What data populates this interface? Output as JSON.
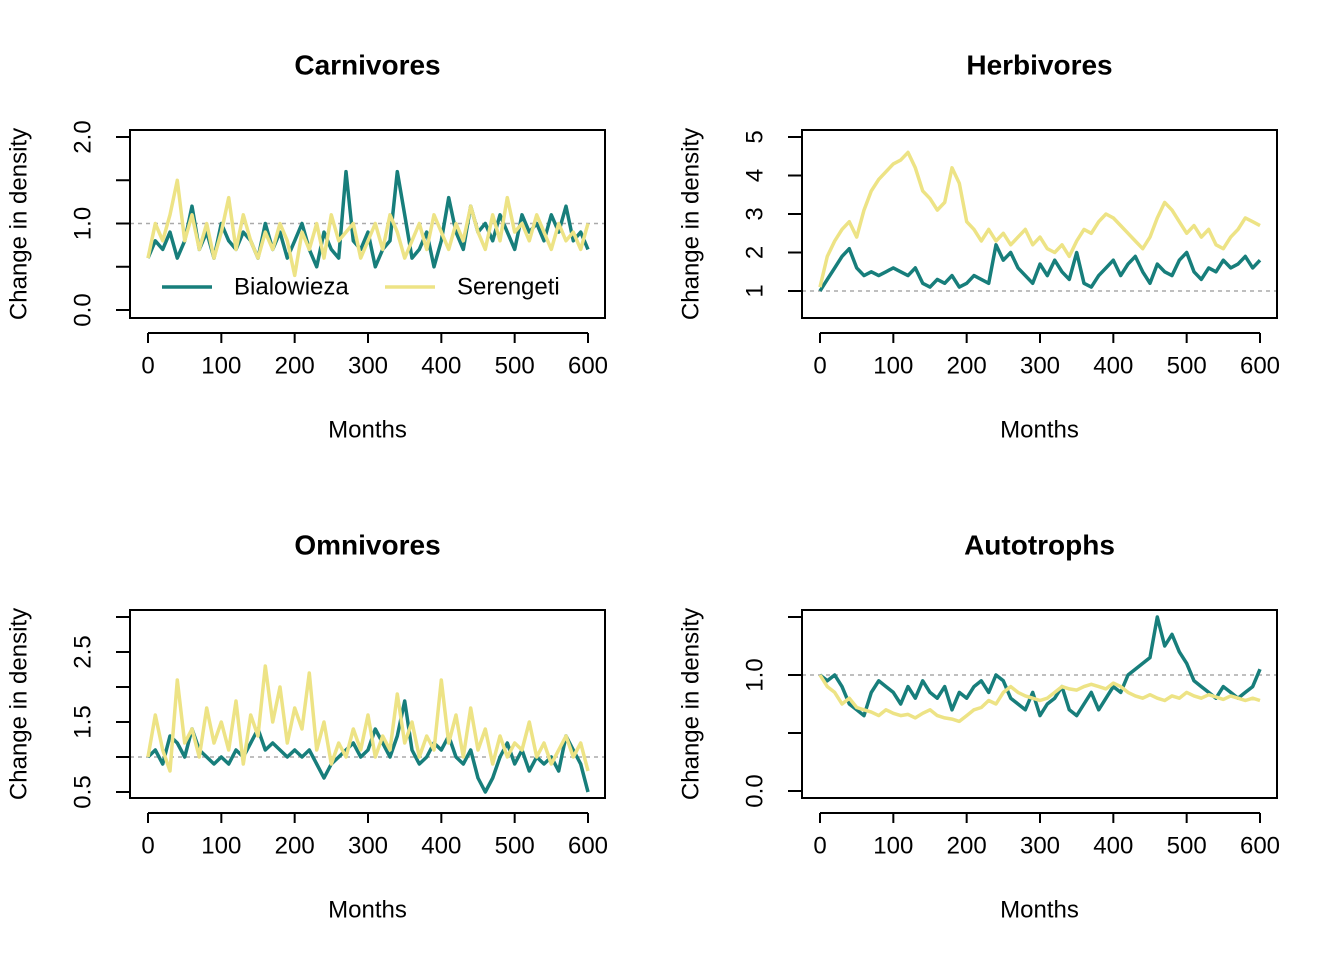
{
  "colors": {
    "bialowieza": "#177e7b",
    "serengeti": "#ede385",
    "refline": "#aaaaaa"
  },
  "legend": {
    "items": [
      "Bialowieza",
      "Serengeti"
    ],
    "placement": "bottom-center"
  },
  "chart_data": [
    {
      "type": "line",
      "title": "Carnivores",
      "xlabel": "Months",
      "ylabel": "Change in density",
      "xlim": [
        0,
        600
      ],
      "ylim": [
        0,
        2.0
      ],
      "xticks": [
        0,
        100,
        200,
        300,
        400,
        500,
        600
      ],
      "xticklabels": [
        "0",
        "100",
        "200",
        "300",
        "400",
        "500",
        "600"
      ],
      "yticks": [
        0,
        0.5,
        1.0,
        1.5,
        2.0
      ],
      "yticklabels": [
        "0.0",
        "",
        "1.0",
        "",
        "2.0"
      ],
      "refline": 1.0,
      "x": [
        0,
        10,
        20,
        30,
        40,
        50,
        60,
        70,
        80,
        90,
        100,
        110,
        120,
        130,
        140,
        150,
        160,
        170,
        180,
        190,
        200,
        210,
        220,
        230,
        240,
        250,
        260,
        270,
        280,
        290,
        300,
        310,
        320,
        330,
        340,
        350,
        360,
        370,
        380,
        390,
        400,
        410,
        420,
        430,
        440,
        450,
        460,
        470,
        480,
        490,
        500,
        510,
        520,
        530,
        540,
        550,
        560,
        570,
        580,
        590,
        600
      ],
      "series": [
        {
          "name": "Bialowieza",
          "values": [
            0.6,
            0.8,
            0.7,
            0.9,
            0.6,
            0.8,
            1.2,
            0.7,
            0.9,
            0.6,
            1.0,
            0.8,
            0.7,
            0.9,
            0.8,
            0.6,
            1.0,
            0.7,
            0.9,
            0.6,
            0.8,
            1.0,
            0.7,
            0.5,
            0.9,
            0.7,
            0.6,
            1.6,
            0.8,
            0.7,
            0.9,
            0.5,
            0.7,
            0.8,
            1.6,
            1.1,
            0.6,
            0.7,
            0.9,
            0.5,
            0.8,
            1.3,
            0.9,
            0.7,
            1.2,
            0.9,
            1.0,
            0.8,
            1.1,
            0.9,
            0.7,
            1.1,
            0.9,
            1.0,
            0.8,
            1.1,
            0.9,
            1.2,
            0.8,
            0.9,
            0.7
          ]
        },
        {
          "name": "Serengeti",
          "values": [
            0.6,
            1.0,
            0.8,
            1.1,
            1.5,
            0.8,
            1.1,
            0.7,
            1.0,
            0.6,
            0.9,
            1.3,
            0.7,
            1.1,
            0.8,
            0.6,
            0.9,
            0.7,
            1.0,
            0.8,
            0.4,
            0.9,
            0.7,
            1.0,
            0.6,
            1.1,
            0.8,
            0.9,
            1.0,
            0.6,
            0.8,
            1.0,
            0.7,
            1.1,
            0.9,
            0.6,
            0.8,
            1.0,
            0.7,
            1.1,
            0.9,
            0.7,
            1.0,
            0.8,
            1.2,
            0.9,
            0.7,
            1.1,
            0.8,
            1.3,
            0.9,
            1.0,
            0.8,
            1.1,
            0.9,
            0.7,
            1.0,
            0.8,
            0.9,
            0.7,
            1.0
          ]
        }
      ]
    },
    {
      "type": "line",
      "title": "Herbivores",
      "xlabel": "Months",
      "ylabel": "Change in density",
      "xlim": [
        0,
        600
      ],
      "ylim": [
        1,
        5
      ],
      "xticks": [
        0,
        100,
        200,
        300,
        400,
        500,
        600
      ],
      "xticklabels": [
        "0",
        "100",
        "200",
        "300",
        "400",
        "500",
        "600"
      ],
      "yticks": [
        1,
        2,
        3,
        4,
        5
      ],
      "yticklabels": [
        "1",
        "2",
        "3",
        "4",
        "5"
      ],
      "refline": 1.0,
      "x": [
        0,
        10,
        20,
        30,
        40,
        50,
        60,
        70,
        80,
        90,
        100,
        110,
        120,
        130,
        140,
        150,
        160,
        170,
        180,
        190,
        200,
        210,
        220,
        230,
        240,
        250,
        260,
        270,
        280,
        290,
        300,
        310,
        320,
        330,
        340,
        350,
        360,
        370,
        380,
        390,
        400,
        410,
        420,
        430,
        440,
        450,
        460,
        470,
        480,
        490,
        500,
        510,
        520,
        530,
        540,
        550,
        560,
        570,
        580,
        590,
        600
      ],
      "series": [
        {
          "name": "Bialowieza",
          "values": [
            1.0,
            1.3,
            1.6,
            1.9,
            2.1,
            1.6,
            1.4,
            1.5,
            1.4,
            1.5,
            1.6,
            1.5,
            1.4,
            1.6,
            1.2,
            1.1,
            1.3,
            1.2,
            1.4,
            1.1,
            1.2,
            1.4,
            1.3,
            1.2,
            2.2,
            1.8,
            2.0,
            1.6,
            1.4,
            1.2,
            1.7,
            1.4,
            1.8,
            1.5,
            1.3,
            2.0,
            1.2,
            1.1,
            1.4,
            1.6,
            1.8,
            1.4,
            1.7,
            1.9,
            1.5,
            1.2,
            1.7,
            1.5,
            1.4,
            1.8,
            2.0,
            1.5,
            1.3,
            1.6,
            1.5,
            1.8,
            1.6,
            1.7,
            1.9,
            1.6,
            1.8
          ]
        },
        {
          "name": "Serengeti",
          "values": [
            1.1,
            1.9,
            2.3,
            2.6,
            2.8,
            2.4,
            3.1,
            3.6,
            3.9,
            4.1,
            4.3,
            4.4,
            4.6,
            4.2,
            3.6,
            3.4,
            3.1,
            3.3,
            4.2,
            3.8,
            2.8,
            2.6,
            2.3,
            2.6,
            2.3,
            2.5,
            2.2,
            2.4,
            2.6,
            2.2,
            2.4,
            2.1,
            2.0,
            2.2,
            1.9,
            2.3,
            2.6,
            2.5,
            2.8,
            3.0,
            2.9,
            2.7,
            2.5,
            2.3,
            2.1,
            2.4,
            2.9,
            3.3,
            3.1,
            2.8,
            2.5,
            2.7,
            2.4,
            2.6,
            2.2,
            2.1,
            2.4,
            2.6,
            2.9,
            2.8,
            2.7
          ]
        }
      ]
    },
    {
      "type": "line",
      "title": "Omnivores",
      "xlabel": "Months",
      "ylabel": "Change in density",
      "xlim": [
        0,
        600
      ],
      "ylim": [
        0.5,
        3.0
      ],
      "xticks": [
        0,
        100,
        200,
        300,
        400,
        500,
        600
      ],
      "xticklabels": [
        "0",
        "100",
        "200",
        "300",
        "400",
        "500",
        "600"
      ],
      "yticks": [
        0.5,
        1.0,
        1.5,
        2.0,
        2.5,
        3.0
      ],
      "yticklabels": [
        "0.5",
        "",
        "1.5",
        "",
        "2.5",
        ""
      ],
      "refline": 1.0,
      "x": [
        0,
        10,
        20,
        30,
        40,
        50,
        60,
        70,
        80,
        90,
        100,
        110,
        120,
        130,
        140,
        150,
        160,
        170,
        180,
        190,
        200,
        210,
        220,
        230,
        240,
        250,
        260,
        270,
        280,
        290,
        300,
        310,
        320,
        330,
        340,
        350,
        360,
        370,
        380,
        390,
        400,
        410,
        420,
        430,
        440,
        450,
        460,
        470,
        480,
        490,
        500,
        510,
        520,
        530,
        540,
        550,
        560,
        570,
        580,
        590,
        600
      ],
      "series": [
        {
          "name": "Bialowieza",
          "values": [
            1.0,
            1.1,
            0.9,
            1.3,
            1.2,
            1.0,
            1.4,
            1.1,
            1.0,
            0.9,
            1.0,
            0.9,
            1.1,
            1.0,
            1.2,
            1.4,
            1.1,
            1.2,
            1.1,
            1.0,
            1.1,
            1.0,
            1.1,
            0.9,
            0.7,
            0.9,
            1.0,
            1.1,
            1.2,
            1.0,
            1.1,
            1.4,
            1.2,
            1.0,
            1.3,
            1.8,
            1.1,
            0.9,
            1.0,
            1.2,
            1.1,
            1.3,
            1.0,
            0.9,
            1.1,
            0.7,
            0.5,
            0.7,
            1.0,
            1.2,
            0.9,
            1.1,
            0.8,
            1.0,
            0.9,
            1.0,
            0.8,
            1.3,
            1.1,
            0.9,
            0.5
          ]
        },
        {
          "name": "Serengeti",
          "values": [
            1.0,
            1.6,
            1.1,
            0.8,
            2.1,
            1.2,
            1.4,
            1.0,
            1.7,
            1.2,
            1.5,
            1.1,
            1.8,
            0.9,
            1.6,
            1.3,
            2.3,
            1.5,
            2.0,
            1.2,
            1.7,
            1.4,
            2.2,
            1.1,
            1.5,
            0.9,
            1.2,
            1.0,
            1.4,
            1.1,
            1.6,
            1.0,
            1.3,
            1.1,
            1.9,
            1.2,
            1.5,
            1.0,
            1.3,
            1.1,
            2.1,
            1.2,
            1.6,
            1.0,
            1.7,
            1.1,
            1.4,
            0.9,
            1.3,
            1.0,
            1.2,
            1.1,
            1.5,
            1.0,
            1.2,
            0.9,
            1.1,
            1.3,
            1.0,
            1.2,
            0.8
          ]
        }
      ]
    },
    {
      "type": "line",
      "title": "Autotrophs",
      "xlabel": "Months",
      "ylabel": "Change in density",
      "xlim": [
        0,
        600
      ],
      "ylim": [
        0,
        1.5
      ],
      "xticks": [
        0,
        100,
        200,
        300,
        400,
        500,
        600
      ],
      "xticklabels": [
        "0",
        "100",
        "200",
        "300",
        "400",
        "500",
        "600"
      ],
      "yticks": [
        0,
        0.5,
        1.0,
        1.5
      ],
      "yticklabels": [
        "0.0",
        "",
        "1.0",
        ""
      ],
      "refline": 1.0,
      "x": [
        0,
        10,
        20,
        30,
        40,
        50,
        60,
        70,
        80,
        90,
        100,
        110,
        120,
        130,
        140,
        150,
        160,
        170,
        180,
        190,
        200,
        210,
        220,
        230,
        240,
        250,
        260,
        270,
        280,
        290,
        300,
        310,
        320,
        330,
        340,
        350,
        360,
        370,
        380,
        390,
        400,
        410,
        420,
        430,
        440,
        450,
        460,
        470,
        480,
        490,
        500,
        510,
        520,
        530,
        540,
        550,
        560,
        570,
        580,
        590,
        600
      ],
      "series": [
        {
          "name": "Bialowieza",
          "values": [
            1.0,
            0.95,
            1.0,
            0.9,
            0.75,
            0.7,
            0.65,
            0.85,
            0.95,
            0.9,
            0.85,
            0.75,
            0.9,
            0.8,
            0.95,
            0.85,
            0.8,
            0.9,
            0.7,
            0.85,
            0.8,
            0.9,
            0.95,
            0.85,
            1.0,
            0.95,
            0.8,
            0.75,
            0.7,
            0.85,
            0.65,
            0.75,
            0.8,
            0.9,
            0.7,
            0.65,
            0.75,
            0.85,
            0.7,
            0.8,
            0.9,
            0.85,
            1.0,
            1.05,
            1.1,
            1.15,
            1.5,
            1.25,
            1.35,
            1.2,
            1.1,
            0.95,
            0.9,
            0.85,
            0.8,
            0.9,
            0.85,
            0.8,
            0.85,
            0.9,
            1.05
          ]
        },
        {
          "name": "Serengeti",
          "values": [
            1.0,
            0.9,
            0.85,
            0.75,
            0.8,
            0.72,
            0.7,
            0.68,
            0.65,
            0.7,
            0.67,
            0.65,
            0.66,
            0.63,
            0.67,
            0.7,
            0.65,
            0.63,
            0.62,
            0.6,
            0.65,
            0.7,
            0.72,
            0.78,
            0.75,
            0.85,
            0.9,
            0.85,
            0.82,
            0.8,
            0.78,
            0.8,
            0.85,
            0.9,
            0.88,
            0.87,
            0.9,
            0.92,
            0.9,
            0.88,
            0.93,
            0.9,
            0.85,
            0.82,
            0.8,
            0.83,
            0.8,
            0.78,
            0.82,
            0.8,
            0.85,
            0.82,
            0.8,
            0.83,
            0.81,
            0.79,
            0.82,
            0.8,
            0.78,
            0.8,
            0.78
          ]
        }
      ]
    }
  ]
}
